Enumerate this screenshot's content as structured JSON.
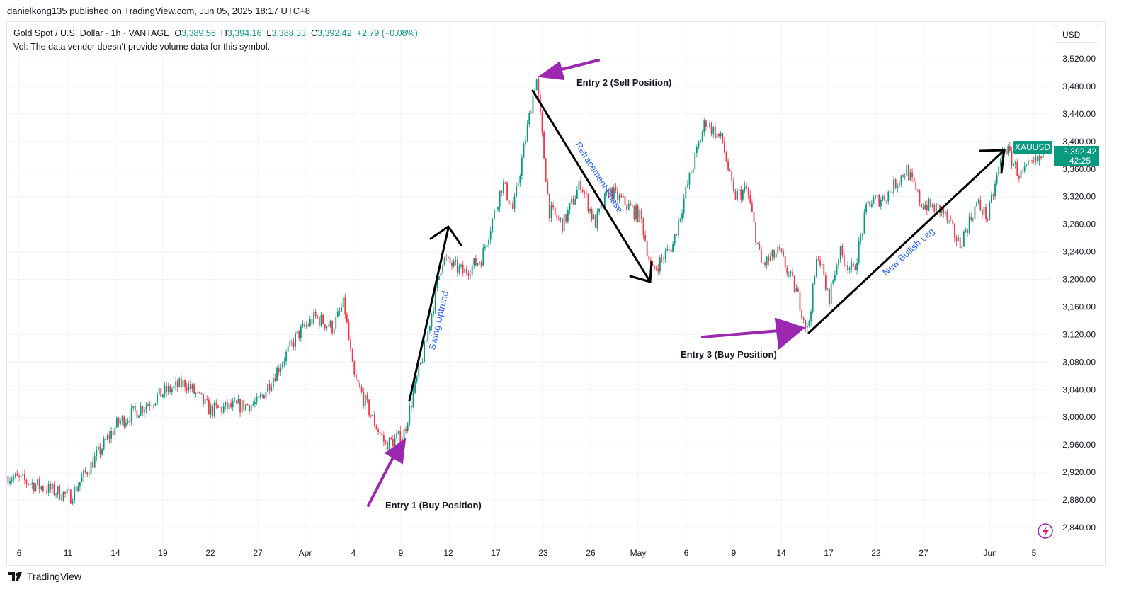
{
  "published": "danielkong135 published on TradingView.com, Jun 05, 2025 18:17 UTC+8",
  "legend": {
    "symbol": "Gold Spot / U.S. Dollar · 1h · VANTAGE",
    "open_label": "O",
    "open": "3,389.56",
    "high_label": "H",
    "high": "3,394.16",
    "low_label": "L",
    "low": "3,388.33",
    "close_label": "C",
    "close": "3,392.42",
    "change": "+2.79 (+0.08%)",
    "volume_note": "Vol: The data vendor doesn't provide volume data for this symbol."
  },
  "currency_button": "USD",
  "price_tag": {
    "symbol": "XAUUSD",
    "price": "3,392.42",
    "countdown": "42:25"
  },
  "footer_logo": "TradingView",
  "colors": {
    "up": "#089981",
    "down": "#f23645",
    "annotation_arrow": "#9c27b0",
    "trend_line": "#000000",
    "annotation_text": "#2962ff"
  },
  "annotations": {
    "entry1": "Entry 1 (Buy Position)",
    "entry2": "Entry 2 (Sell Position)",
    "entry3": "Entry 3 (Buy Position)",
    "swing": "Swing Uptrend",
    "retrace": "Retracement Phase",
    "bullish": "New Bullish Leg"
  },
  "chart_data": {
    "type": "candlestick",
    "symbol": "XAUUSD",
    "timeframe": "1h",
    "ylim": [
      2820,
      3540
    ],
    "y_ticks": [
      "2,840.00",
      "2,880.00",
      "2,920.00",
      "2,960.00",
      "3,000.00",
      "3,040.00",
      "3,080.00",
      "3,120.00",
      "3,160.00",
      "3,200.00",
      "3,240.00",
      "3,280.00",
      "3,320.00",
      "3,360.00",
      "3,400.00",
      "3,440.00",
      "3,480.00",
      "3,520.00"
    ],
    "x_ticks": [
      "6",
      "11",
      "14",
      "19",
      "22",
      "27",
      "Apr",
      "4",
      "9",
      "12",
      "17",
      "23",
      "26",
      "May",
      "6",
      "9",
      "14",
      "17",
      "22",
      "27",
      "Jun",
      "5"
    ],
    "grid": true,
    "last_price": 3392.42,
    "price_path": [
      [
        "2025-03-04 21:00",
        2915
      ],
      [
        "2025-03-11 04:00",
        2885
      ],
      [
        "2025-03-14 04:00",
        2990
      ],
      [
        "2025-03-19 00:00",
        3035
      ],
      [
        "2025-03-20 10:00",
        3050
      ],
      [
        "2025-03-22 00:00",
        3010
      ],
      [
        "2025-03-27 00:00",
        3020
      ],
      [
        "2025-03-31 05:00",
        3120
      ],
      [
        "2025-04-01 15:00",
        3145
      ],
      [
        "2025-04-02 17:00",
        3130
      ],
      [
        "2025-04-03 10:00",
        3165
      ],
      [
        "2025-04-04 00:00",
        3060
      ],
      [
        "2025-04-06 07:00",
        2990
      ],
      [
        "2025-04-07 10:00",
        2960
      ],
      [
        "2025-04-09 04:00",
        2975
      ],
      [
        "2025-04-10 12:00",
        3100
      ],
      [
        "2025-04-11 15:00",
        3230
      ],
      [
        "2025-04-13 15:00",
        3210
      ],
      [
        "2025-04-15 12:00",
        3230
      ],
      [
        "2025-04-17 21:00",
        3340
      ],
      [
        "2025-04-19 05:00",
        3300
      ],
      [
        "2025-04-21 00:00",
        3420
      ],
      [
        "2025-04-22 03:00",
        3495
      ],
      [
        "2025-04-23 09:00",
        3300
      ],
      [
        "2025-04-24 06:00",
        3280
      ],
      [
        "2025-04-25 09:00",
        3340
      ],
      [
        "2025-04-26 11:00",
        3280
      ],
      [
        "2025-04-27 22:00",
        3330
      ],
      [
        "2025-05-01 07:00",
        3290
      ],
      [
        "2025-05-02 10:00",
        3210
      ],
      [
        "2025-05-04 14:00",
        3250
      ],
      [
        "2025-05-06 00:00",
        3330
      ],
      [
        "2025-05-07 05:00",
        3430
      ],
      [
        "2025-05-08 07:00",
        3400
      ],
      [
        "2025-05-09 00:00",
        3320
      ],
      [
        "2025-05-10 10:00",
        3330
      ],
      [
        "2025-05-11 22:00",
        3220
      ],
      [
        "2025-05-13 19:00",
        3240
      ],
      [
        "2025-05-15 00:00",
        3180
      ],
      [
        "2025-05-15 16:00",
        3125
      ],
      [
        "2025-05-16 08:00",
        3240
      ],
      [
        "2025-05-17 00:00",
        3170
      ],
      [
        "2025-05-18 03:00",
        3240
      ],
      [
        "2025-05-19 15:00",
        3210
      ],
      [
        "2025-05-21 03:00",
        3310
      ],
      [
        "2025-05-23 00:00",
        3320
      ],
      [
        "2025-05-25 05:00",
        3360
      ],
      [
        "2025-05-26 17:00",
        3310
      ],
      [
        "2025-05-28 10:00",
        3300
      ],
      [
        "2025-05-29 17:00",
        3250
      ],
      [
        "2025-05-31 00:00",
        3310
      ],
      [
        "2025-05-31 20:00",
        3290
      ],
      [
        "2025-06-02 07:00",
        3395
      ],
      [
        "2025-06-03 17:00",
        3350
      ],
      [
        "2025-06-05 23:00",
        3380
      ]
    ]
  }
}
